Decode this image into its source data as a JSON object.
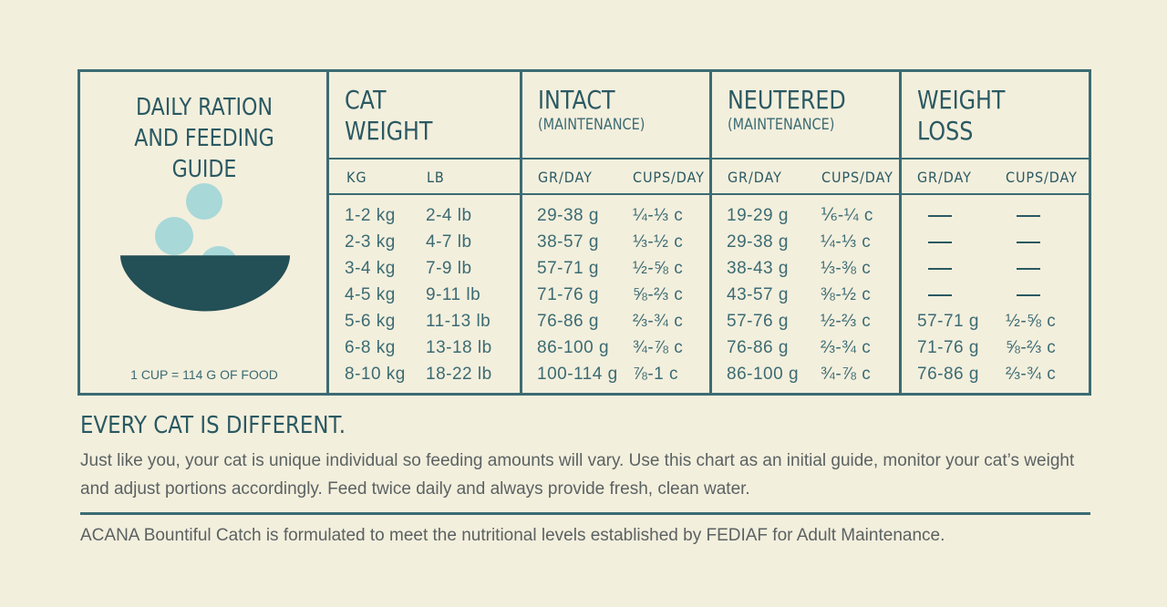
{
  "guide": {
    "title_line1": "DAILY RATION",
    "title_line2": "AND FEEDING GUIDE",
    "cup_note": "1 CUP = 114 G OF FOOD",
    "columns": {
      "weight": {
        "title_line1": "CAT",
        "title_line2": "WEIGHT",
        "sub_kg": "KG",
        "sub_lb": "LB"
      },
      "intact": {
        "title": "INTACT",
        "subtitle": "(MAINTENANCE)",
        "sub_gr": "GR/DAY",
        "sub_cups": "CUPS/DAY"
      },
      "neutered": {
        "title": "NEUTERED",
        "subtitle": "(MAINTENANCE)",
        "sub_gr": "GR/DAY",
        "sub_cups": "CUPS/DAY"
      },
      "weight_loss": {
        "title_line1": "WEIGHT",
        "title_line2": "LOSS",
        "sub_gr": "GR/DAY",
        "sub_cups": "CUPS/DAY"
      }
    },
    "rows": [
      {
        "kg": "1-2 kg",
        "lb": "2-4 lb",
        "intact_gr": "29-38 g",
        "intact_cups": "¼-⅓ c",
        "neutered_gr": "19-29 g",
        "neutered_cups": "⅙-¼ c",
        "loss_gr": "—",
        "loss_cups": "—"
      },
      {
        "kg": "2-3 kg",
        "lb": "4-7 lb",
        "intact_gr": "38-57 g",
        "intact_cups": "⅓-½ c",
        "neutered_gr": "29-38 g",
        "neutered_cups": "¼-⅓ c",
        "loss_gr": "—",
        "loss_cups": "—"
      },
      {
        "kg": "3-4 kg",
        "lb": "7-9 lb",
        "intact_gr": "57-71 g",
        "intact_cups": "½-⅝ c",
        "neutered_gr": "38-43 g",
        "neutered_cups": "⅓-⅜ c",
        "loss_gr": "—",
        "loss_cups": "—"
      },
      {
        "kg": "4-5 kg",
        "lb": "9-11 lb",
        "intact_gr": "71-76 g",
        "intact_cups": "⅝-⅔ c",
        "neutered_gr": "43-57 g",
        "neutered_cups": "⅜-½ c",
        "loss_gr": "—",
        "loss_cups": "—"
      },
      {
        "kg": "5-6 kg",
        "lb": "11-13 lb",
        "intact_gr": "76-86 g",
        "intact_cups": "⅔-¾ c",
        "neutered_gr": "57-76 g",
        "neutered_cups": "½-⅔ c",
        "loss_gr": "57-71 g",
        "loss_cups": "½-⅝ c"
      },
      {
        "kg": "6-8 kg",
        "lb": "13-18 lb",
        "intact_gr": "86-100 g",
        "intact_cups": "¾-⅞ c",
        "neutered_gr": "76-86 g",
        "neutered_cups": "⅔-¾ c",
        "loss_gr": "71-76 g",
        "loss_cups": "⅝-⅔ c"
      },
      {
        "kg": "8-10 kg",
        "lb": "18-22 lb",
        "intact_gr": "100-114 g",
        "intact_cups": "⅞-1 c",
        "neutered_gr": "86-100 g",
        "neutered_cups": "¾-⅞ c",
        "loss_gr": "76-86 g",
        "loss_cups": "⅔-¾ c"
      }
    ]
  },
  "heading": "EVERY CAT IS DIFFERENT.",
  "paragraph": "Just like you, your cat is unique individual so feeding amounts will vary. Use this chart as an initial guide, monitor your cat’s weight and adjust portions accordingly. Feed twice daily and always provide fresh, clean water.",
  "footer": "ACANA Bountiful Catch is formulated to meet the nutritional levels established by FEDIAF for Adult Maintenance.",
  "colors": {
    "background": "#f3efdd",
    "border": "#3b6b73",
    "bowl": "#234f56",
    "kibble": "#a8d8d8"
  },
  "icons": [
    "food-bowl-icon",
    "kibble-icon"
  ]
}
